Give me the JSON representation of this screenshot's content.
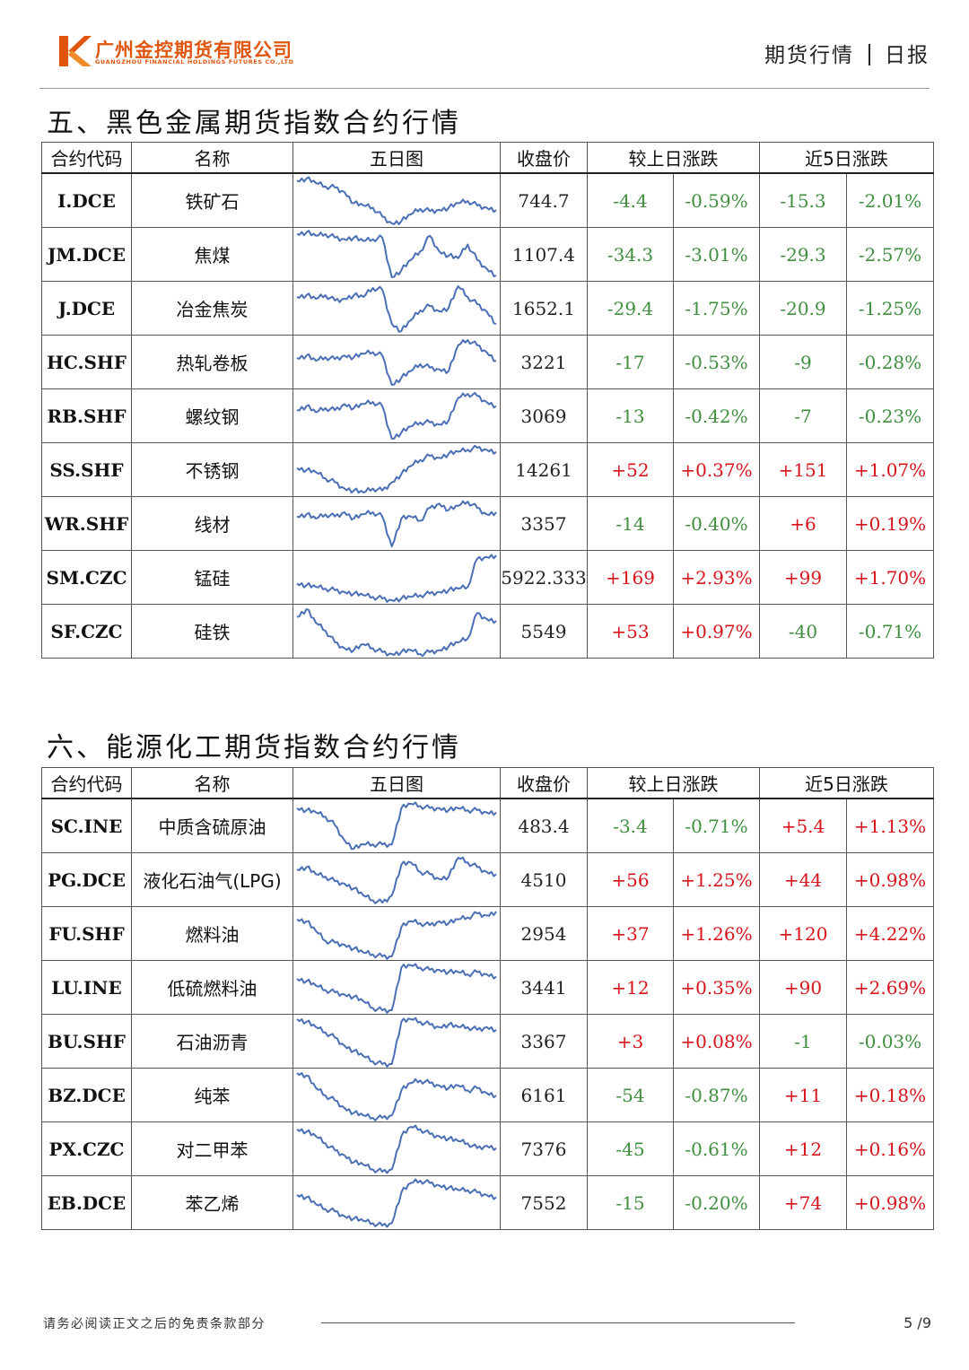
{
  "header": {
    "company_cn": "广州金控期货有限公司",
    "company_en": "GUANGZHOU FINANCIAL HOLDINGS FUTURES CO.,LTD",
    "doc_type": "期货行情",
    "period": "日报",
    "brand_color": "#e0560f"
  },
  "columns": {
    "code": "合约代码",
    "name": "名称",
    "chart": "五日图",
    "close": "收盘价",
    "day_change": "较上日涨跌",
    "five_day_change": "近5日涨跌"
  },
  "colors": {
    "up": "#d7141b",
    "down": "#3f8f3f",
    "line": "#4a6fb5"
  },
  "sections": [
    {
      "title": "五、黑色金属期货指数合约行情",
      "rows": [
        {
          "code": "I.DCE",
          "name": "铁矿石",
          "close": "744.7",
          "chg": "-4.4",
          "pct": "-0.59%",
          "chg5": "-15.3",
          "pct5": "-2.01%",
          "trend": [
            60,
            62,
            58,
            55,
            54,
            50,
            40,
            38,
            36,
            28,
            22,
            24,
            30,
            35,
            33,
            34,
            36,
            40,
            42,
            38,
            36,
            34
          ]
        },
        {
          "code": "JM.DCE",
          "name": "焦煤",
          "close": "1107.4",
          "chg": "-34.3",
          "pct": "-3.01%",
          "chg5": "-29.3",
          "pct5": "-2.57%",
          "trend": [
            70,
            72,
            68,
            70,
            66,
            64,
            66,
            62,
            64,
            66,
            20,
            28,
            40,
            50,
            68,
            50,
            45,
            42,
            58,
            40,
            30,
            22
          ]
        },
        {
          "code": "J.DCE",
          "name": "冶金焦炭",
          "close": "1652.1",
          "chg": "-29.4",
          "pct": "-1.75%",
          "chg5": "-20.9",
          "pct5": "-1.25%",
          "trend": [
            60,
            62,
            58,
            62,
            56,
            58,
            62,
            60,
            70,
            68,
            30,
            22,
            34,
            45,
            50,
            44,
            48,
            72,
            60,
            52,
            44,
            30
          ]
        },
        {
          "code": "HC.SHF",
          "name": "热轧卷板",
          "close": "3221",
          "chg": "-17",
          "pct": "-0.53%",
          "chg5": "-9",
          "pct5": "-0.28%",
          "trend": [
            55,
            58,
            52,
            56,
            54,
            58,
            56,
            60,
            62,
            58,
            24,
            32,
            40,
            48,
            44,
            42,
            40,
            70,
            76,
            70,
            62,
            52
          ]
        },
        {
          "code": "RB.SHF",
          "name": "螺纹钢",
          "close": "3069",
          "chg": "-13",
          "pct": "-0.42%",
          "chg5": "-7",
          "pct5": "-0.23%",
          "trend": [
            52,
            56,
            50,
            54,
            52,
            58,
            54,
            58,
            60,
            56,
            24,
            30,
            36,
            40,
            40,
            38,
            42,
            64,
            68,
            66,
            60,
            56
          ]
        },
        {
          "code": "SS.SHF",
          "name": "不锈钢",
          "close": "14261",
          "chg": "+52",
          "pct": "+0.37%",
          "chg5": "+151",
          "pct5": "+1.07%",
          "trend": [
            50,
            48,
            46,
            40,
            36,
            30,
            28,
            26,
            30,
            28,
            36,
            44,
            52,
            58,
            62,
            60,
            64,
            66,
            68,
            70,
            68,
            66
          ]
        },
        {
          "code": "WR.SHF",
          "name": "线材",
          "close": "3357",
          "chg": "-14",
          "pct": "-0.40%",
          "chg5": "+6",
          "pct5": "+0.19%",
          "trend": [
            52,
            54,
            50,
            54,
            52,
            56,
            50,
            54,
            56,
            52,
            24,
            50,
            52,
            48,
            60,
            64,
            58,
            62,
            66,
            60,
            54,
            56
          ]
        },
        {
          "code": "SM.CZC",
          "name": "锰硅",
          "close": "5922.333",
          "chg": "+169",
          "pct": "+2.93%",
          "chg5": "+99",
          "pct5": "+1.70%",
          "trend": [
            40,
            38,
            36,
            34,
            32,
            30,
            28,
            26,
            24,
            22,
            20,
            22,
            24,
            26,
            28,
            30,
            32,
            34,
            36,
            70,
            72,
            74
          ]
        },
        {
          "code": "SF.CZC",
          "name": "硅铁",
          "close": "5549",
          "chg": "+53",
          "pct": "+0.97%",
          "chg5": "-40",
          "pct5": "-0.71%",
          "trend": [
            62,
            70,
            56,
            48,
            36,
            30,
            28,
            34,
            30,
            26,
            24,
            26,
            28,
            24,
            26,
            28,
            32,
            36,
            40,
            66,
            60,
            58
          ]
        }
      ]
    },
    {
      "title": "六、能源化工期货指数合约行情",
      "rows": [
        {
          "code": "SC.INE",
          "name": "中质含硫原油",
          "close": "483.4",
          "chg": "-3.4",
          "pct": "-0.71%",
          "chg5": "+5.4",
          "pct5": "+1.13%",
          "trend": [
            60,
            58,
            56,
            52,
            44,
            30,
            22,
            26,
            26,
            26,
            26,
            60,
            64,
            62,
            60,
            60,
            58,
            60,
            58,
            58,
            56,
            56
          ]
        },
        {
          "code": "PG.DCE",
          "name": "液化石油气(LPG)",
          "close": "4510",
          "chg": "+56",
          "pct": "+1.25%",
          "chg5": "+44",
          "pct5": "+0.98%",
          "trend": [
            52,
            54,
            48,
            46,
            42,
            40,
            36,
            30,
            26,
            24,
            30,
            56,
            58,
            50,
            48,
            44,
            46,
            62,
            58,
            54,
            50,
            48
          ]
        },
        {
          "code": "FU.SHF",
          "name": "燃料油",
          "close": "2954",
          "chg": "+37",
          "pct": "+1.26%",
          "chg5": "+120",
          "pct5": "+4.22%",
          "trend": [
            52,
            50,
            40,
            30,
            28,
            26,
            22,
            18,
            16,
            14,
            14,
            44,
            50,
            48,
            46,
            50,
            48,
            52,
            54,
            58,
            56,
            60
          ]
        },
        {
          "code": "LU.INE",
          "name": "低硫燃料油",
          "close": "3441",
          "chg": "+12",
          "pct": "+0.35%",
          "chg5": "+90",
          "pct5": "+2.69%",
          "trend": [
            46,
            44,
            40,
            36,
            34,
            32,
            30,
            26,
            20,
            18,
            18,
            56,
            58,
            56,
            54,
            54,
            52,
            52,
            50,
            52,
            50,
            48
          ]
        },
        {
          "code": "BU.SHF",
          "name": "石油沥青",
          "close": "3367",
          "chg": "+3",
          "pct": "+0.08%",
          "chg5": "-1",
          "pct5": "-0.03%",
          "trend": [
            54,
            52,
            48,
            44,
            40,
            34,
            30,
            26,
            22,
            20,
            20,
            52,
            54,
            52,
            50,
            48,
            50,
            48,
            48,
            46,
            48,
            46
          ]
        },
        {
          "code": "BZ.DCE",
          "name": "纯苯",
          "close": "6161",
          "chg": "-54",
          "pct": "-0.87%",
          "chg5": "+11",
          "pct5": "+0.18%",
          "trend": [
            58,
            56,
            46,
            40,
            36,
            30,
            26,
            24,
            22,
            22,
            24,
            44,
            50,
            52,
            50,
            48,
            46,
            48,
            44,
            46,
            42,
            40
          ]
        },
        {
          "code": "PX.CZC",
          "name": "对二甲苯",
          "close": "7376",
          "chg": "-45",
          "pct": "-0.61%",
          "chg5": "+12",
          "pct5": "+0.16%",
          "trend": [
            56,
            54,
            50,
            44,
            38,
            34,
            28,
            26,
            22,
            20,
            22,
            50,
            58,
            56,
            52,
            50,
            48,
            46,
            44,
            40,
            42,
            40
          ]
        },
        {
          "code": "EB.DCE",
          "name": "苯乙烯",
          "close": "7552",
          "chg": "-15",
          "pct": "-0.20%",
          "chg5": "+74",
          "pct5": "+0.98%",
          "trend": [
            46,
            44,
            38,
            34,
            32,
            28,
            26,
            24,
            22,
            20,
            22,
            48,
            56,
            58,
            56,
            54,
            52,
            50,
            50,
            48,
            46,
            44
          ]
        }
      ]
    }
  ],
  "footer": {
    "disclaimer": "请务必阅读正文之后的免责条款部分",
    "page": "5 /9"
  }
}
